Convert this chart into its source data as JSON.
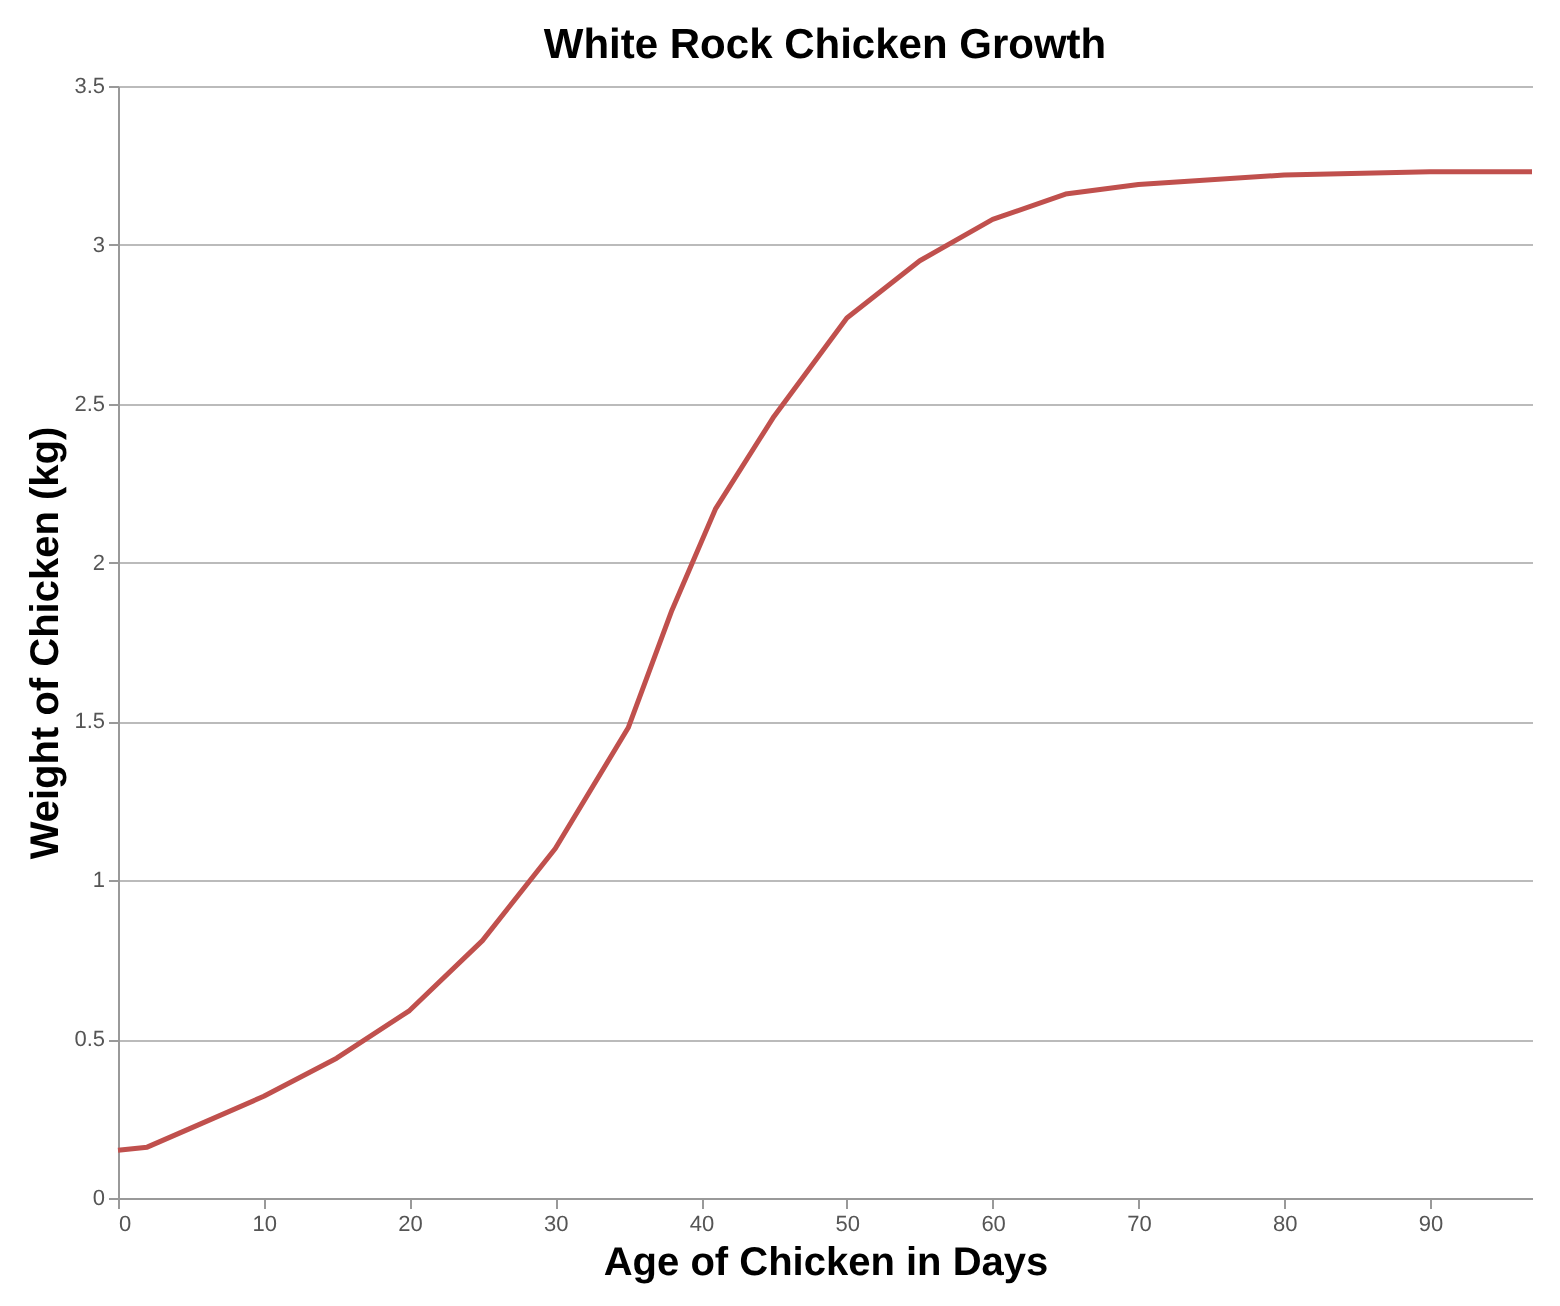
{
  "chart_data": {
    "type": "line",
    "title": "White Rock Chicken Growth",
    "xlabel": "Age of Chicken in Days",
    "ylabel": "Weight of Chicken (kg)",
    "x": [
      0,
      2,
      5,
      10,
      15,
      20,
      25,
      30,
      35,
      38,
      41,
      45,
      50,
      55,
      60,
      65,
      70,
      80,
      90,
      97
    ],
    "series": [
      {
        "color": "#c0504d",
        "values": [
          0.15,
          0.16,
          0.22,
          0.32,
          0.44,
          0.59,
          0.81,
          1.1,
          1.48,
          1.85,
          2.17,
          2.46,
          2.77,
          2.95,
          3.08,
          3.16,
          3.19,
          3.22,
          3.23,
          3.23
        ]
      }
    ],
    "xlim": [
      0,
      97
    ],
    "xticks": [
      0,
      10,
      20,
      30,
      40,
      50,
      60,
      70,
      80,
      90
    ],
    "ylim": [
      0,
      3.5
    ],
    "yticks": [
      0,
      0.5,
      1,
      1.5,
      2,
      2.5,
      3,
      3.5
    ],
    "grid": "y",
    "marker": "none",
    "line_style": "solid"
  }
}
